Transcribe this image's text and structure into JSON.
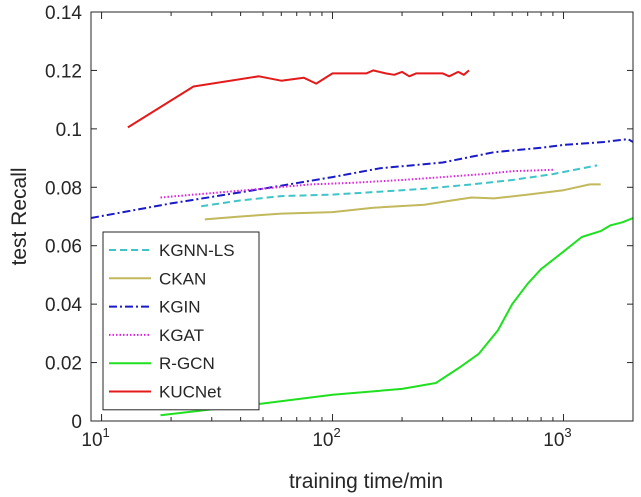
{
  "chart_data": {
    "type": "line",
    "title": "",
    "xlabel": "training time/min",
    "ylabel": "test Recall",
    "xscale": "log",
    "xlim": [
      9,
      2000
    ],
    "ylim": [
      0,
      0.14
    ],
    "grid": false,
    "legend_position": "bottom-left",
    "x_ticks": [
      {
        "value": 10,
        "base": "10",
        "exp": "1"
      },
      {
        "value": 100,
        "base": "10",
        "exp": "2"
      },
      {
        "value": 1000,
        "base": "10",
        "exp": "3"
      }
    ],
    "y_ticks": [
      {
        "value": 0,
        "label": "0"
      },
      {
        "value": 0.02,
        "label": "0.02"
      },
      {
        "value": 0.04,
        "label": "0.04"
      },
      {
        "value": 0.06,
        "label": "0.06"
      },
      {
        "value": 0.08,
        "label": "0.08"
      },
      {
        "value": 0.1,
        "label": "0.1"
      },
      {
        "value": 0.12,
        "label": "0.12"
      },
      {
        "value": 0.14,
        "label": "0.14"
      }
    ],
    "series": [
      {
        "name": "KGNN-LS",
        "color": "#3fc4c8",
        "style": "dashed",
        "points": [
          [
            27,
            0.0735
          ],
          [
            40,
            0.0755
          ],
          [
            60,
            0.077
          ],
          [
            100,
            0.0775
          ],
          [
            160,
            0.0785
          ],
          [
            250,
            0.0795
          ],
          [
            400,
            0.081
          ],
          [
            600,
            0.0825
          ],
          [
            900,
            0.0845
          ],
          [
            1400,
            0.0875
          ]
        ]
      },
      {
        "name": "CKAN",
        "color": "#c2b85c",
        "style": "solid",
        "points": [
          [
            28,
            0.069
          ],
          [
            40,
            0.07
          ],
          [
            60,
            0.071
          ],
          [
            100,
            0.0715
          ],
          [
            150,
            0.073
          ],
          [
            250,
            0.074
          ],
          [
            330,
            0.0755
          ],
          [
            400,
            0.0765
          ],
          [
            500,
            0.0762
          ],
          [
            700,
            0.0775
          ],
          [
            1000,
            0.079
          ],
          [
            1300,
            0.081
          ],
          [
            1450,
            0.081
          ]
        ]
      },
      {
        "name": "KGIN",
        "color": "#1a1ac8",
        "style": "dashdot",
        "points": [
          [
            9,
            0.0695
          ],
          [
            20,
            0.0745
          ],
          [
            50,
            0.0795
          ],
          [
            100,
            0.0835
          ],
          [
            160,
            0.0865
          ],
          [
            300,
            0.0885
          ],
          [
            500,
            0.092
          ],
          [
            800,
            0.0935
          ],
          [
            1000,
            0.0945
          ],
          [
            1500,
            0.0955
          ],
          [
            1900,
            0.0965
          ],
          [
            2000,
            0.0955
          ]
        ]
      },
      {
        "name": "KGAT",
        "color": "#e020e0",
        "style": "dotted",
        "points": [
          [
            18,
            0.0765
          ],
          [
            30,
            0.078
          ],
          [
            50,
            0.0795
          ],
          [
            80,
            0.081
          ],
          [
            120,
            0.0815
          ],
          [
            200,
            0.0825
          ],
          [
            300,
            0.0835
          ],
          [
            450,
            0.0845
          ],
          [
            600,
            0.0855
          ],
          [
            900,
            0.086
          ]
        ]
      },
      {
        "name": "R-GCN",
        "color": "#1fe01f",
        "style": "solid",
        "points": [
          [
            18,
            0.002
          ],
          [
            50,
            0.006
          ],
          [
            100,
            0.009
          ],
          [
            200,
            0.011
          ],
          [
            280,
            0.013
          ],
          [
            350,
            0.018
          ],
          [
            430,
            0.023
          ],
          [
            520,
            0.031
          ],
          [
            600,
            0.04
          ],
          [
            700,
            0.047
          ],
          [
            800,
            0.052
          ],
          [
            1000,
            0.058
          ],
          [
            1200,
            0.063
          ],
          [
            1450,
            0.065
          ],
          [
            1600,
            0.067
          ],
          [
            1800,
            0.068
          ],
          [
            2000,
            0.0695
          ]
        ]
      },
      {
        "name": "KUCNet",
        "color": "#e41a1a",
        "style": "solid",
        "points": [
          [
            13,
            0.1005
          ],
          [
            25,
            0.1145
          ],
          [
            48,
            0.118
          ],
          [
            60,
            0.1165
          ],
          [
            75,
            0.1175
          ],
          [
            85,
            0.1155
          ],
          [
            100,
            0.119
          ],
          [
            120,
            0.119
          ],
          [
            140,
            0.119
          ],
          [
            150,
            0.12
          ],
          [
            170,
            0.119
          ],
          [
            185,
            0.1185
          ],
          [
            200,
            0.1195
          ],
          [
            215,
            0.118
          ],
          [
            230,
            0.119
          ],
          [
            260,
            0.119
          ],
          [
            300,
            0.119
          ],
          [
            320,
            0.118
          ],
          [
            350,
            0.1195
          ],
          [
            370,
            0.1185
          ],
          [
            390,
            0.12
          ]
        ]
      }
    ]
  }
}
